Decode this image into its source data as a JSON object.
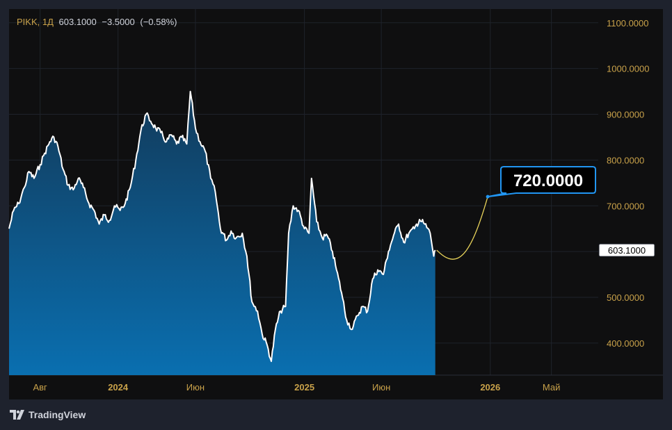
{
  "legend": {
    "symbol": "PIKK, 1Д",
    "last": "603.1000",
    "change": "−3.5000",
    "change_pct": "(−0.58%)"
  },
  "logo": {
    "text": "TradingView"
  },
  "colors": {
    "accent": "#c9a24a",
    "line": "#ffffff",
    "fill_top": "#123a5a",
    "fill_bottom": "#0a6fb0",
    "callout": "#2196f3",
    "projection": "#e8d35a"
  },
  "chart_data": {
    "type": "area",
    "title": "",
    "xlabel": "",
    "ylabel": "",
    "ylim": [
      330,
      1130
    ],
    "y_ticks": [
      "1100.0000",
      "1000.0000",
      "900.0000",
      "800.0000",
      "700.0000",
      "600.0000",
      "500.0000",
      "400.0000"
    ],
    "x_ticks": [
      {
        "label": "Авг",
        "date": "2023-08-01",
        "major": false
      },
      {
        "label": "2024",
        "date": "2024-01-01",
        "major": true
      },
      {
        "label": "Июн",
        "date": "2024-06-01",
        "major": false
      },
      {
        "label": "2025",
        "date": "2025-01-01",
        "major": true
      },
      {
        "label": "Июн",
        "date": "2025-06-01",
        "major": false
      },
      {
        "label": "2026",
        "date": "2026-01-01",
        "major": true
      },
      {
        "label": "Май",
        "date": "2026-05-01",
        "major": false
      }
    ],
    "x_range": [
      "2023-06-01",
      "2026-08-01"
    ],
    "series": [
      {
        "points": [
          [
            "2023-06-01",
            650
          ],
          [
            "2023-06-10",
            690
          ],
          [
            "2023-06-20",
            705
          ],
          [
            "2023-07-01",
            740
          ],
          [
            "2023-07-10",
            775
          ],
          [
            "2023-07-20",
            760
          ],
          [
            "2023-08-01",
            790
          ],
          [
            "2023-08-10",
            815
          ],
          [
            "2023-08-20",
            840
          ],
          [
            "2023-08-28",
            850
          ],
          [
            "2023-09-05",
            830
          ],
          [
            "2023-09-15",
            780
          ],
          [
            "2023-09-25",
            745
          ],
          [
            "2023-10-05",
            735
          ],
          [
            "2023-10-15",
            760
          ],
          [
            "2023-10-25",
            740
          ],
          [
            "2023-11-05",
            705
          ],
          [
            "2023-11-15",
            690
          ],
          [
            "2023-11-25",
            660
          ],
          [
            "2023-12-05",
            680
          ],
          [
            "2023-12-15",
            668
          ],
          [
            "2023-12-25",
            700
          ],
          [
            "2024-01-05",
            690
          ],
          [
            "2024-01-15",
            705
          ],
          [
            "2024-01-25",
            740
          ],
          [
            "2024-02-05",
            800
          ],
          [
            "2024-02-15",
            865
          ],
          [
            "2024-02-25",
            900
          ],
          [
            "2024-03-05",
            885
          ],
          [
            "2024-03-15",
            870
          ],
          [
            "2024-03-25",
            860
          ],
          [
            "2024-04-05",
            840
          ],
          [
            "2024-04-15",
            855
          ],
          [
            "2024-04-25",
            835
          ],
          [
            "2024-05-05",
            850
          ],
          [
            "2024-05-15",
            835
          ],
          [
            "2024-05-22",
            950
          ],
          [
            "2024-06-01",
            870
          ],
          [
            "2024-06-10",
            840
          ],
          [
            "2024-06-20",
            820
          ],
          [
            "2024-07-01",
            760
          ],
          [
            "2024-07-10",
            730
          ],
          [
            "2024-07-20",
            650
          ],
          [
            "2024-08-01",
            625
          ],
          [
            "2024-08-10",
            645
          ],
          [
            "2024-08-20",
            630
          ],
          [
            "2024-09-01",
            640
          ],
          [
            "2024-09-10",
            590
          ],
          [
            "2024-09-20",
            490
          ],
          [
            "2024-10-01",
            470
          ],
          [
            "2024-10-10",
            420
          ],
          [
            "2024-10-20",
            395
          ],
          [
            "2024-10-28",
            360
          ],
          [
            "2024-11-05",
            430
          ],
          [
            "2024-11-15",
            470
          ],
          [
            "2024-11-25",
            480
          ],
          [
            "2024-12-01",
            640
          ],
          [
            "2024-12-10",
            700
          ],
          [
            "2024-12-20",
            690
          ],
          [
            "2025-01-01",
            650
          ],
          [
            "2025-01-10",
            640
          ],
          [
            "2025-01-15",
            760
          ],
          [
            "2025-01-25",
            665
          ],
          [
            "2025-02-05",
            630
          ],
          [
            "2025-02-15",
            635
          ],
          [
            "2025-02-25",
            600
          ],
          [
            "2025-03-05",
            560
          ],
          [
            "2025-03-15",
            510
          ],
          [
            "2025-03-25",
            450
          ],
          [
            "2025-04-05",
            430
          ],
          [
            "2025-04-15",
            460
          ],
          [
            "2025-04-25",
            480
          ],
          [
            "2025-05-05",
            470
          ],
          [
            "2025-05-15",
            540
          ],
          [
            "2025-05-25",
            560
          ],
          [
            "2025-06-05",
            550
          ],
          [
            "2025-06-15",
            600
          ],
          [
            "2025-06-25",
            635
          ],
          [
            "2025-07-05",
            660
          ],
          [
            "2025-07-15",
            620
          ],
          [
            "2025-07-25",
            640
          ],
          [
            "2025-08-05",
            650
          ],
          [
            "2025-08-15",
            670
          ],
          [
            "2025-08-25",
            660
          ],
          [
            "2025-09-05",
            640
          ],
          [
            "2025-09-12",
            590
          ],
          [
            "2025-09-15",
            603.1
          ]
        ]
      }
    ],
    "projection": {
      "from": [
        "2025-09-15",
        603.1
      ],
      "to": [
        "2025-12-27",
        720
      ],
      "target_label": "720.0000"
    },
    "last_value_label": "603.1000",
    "grid": true
  }
}
